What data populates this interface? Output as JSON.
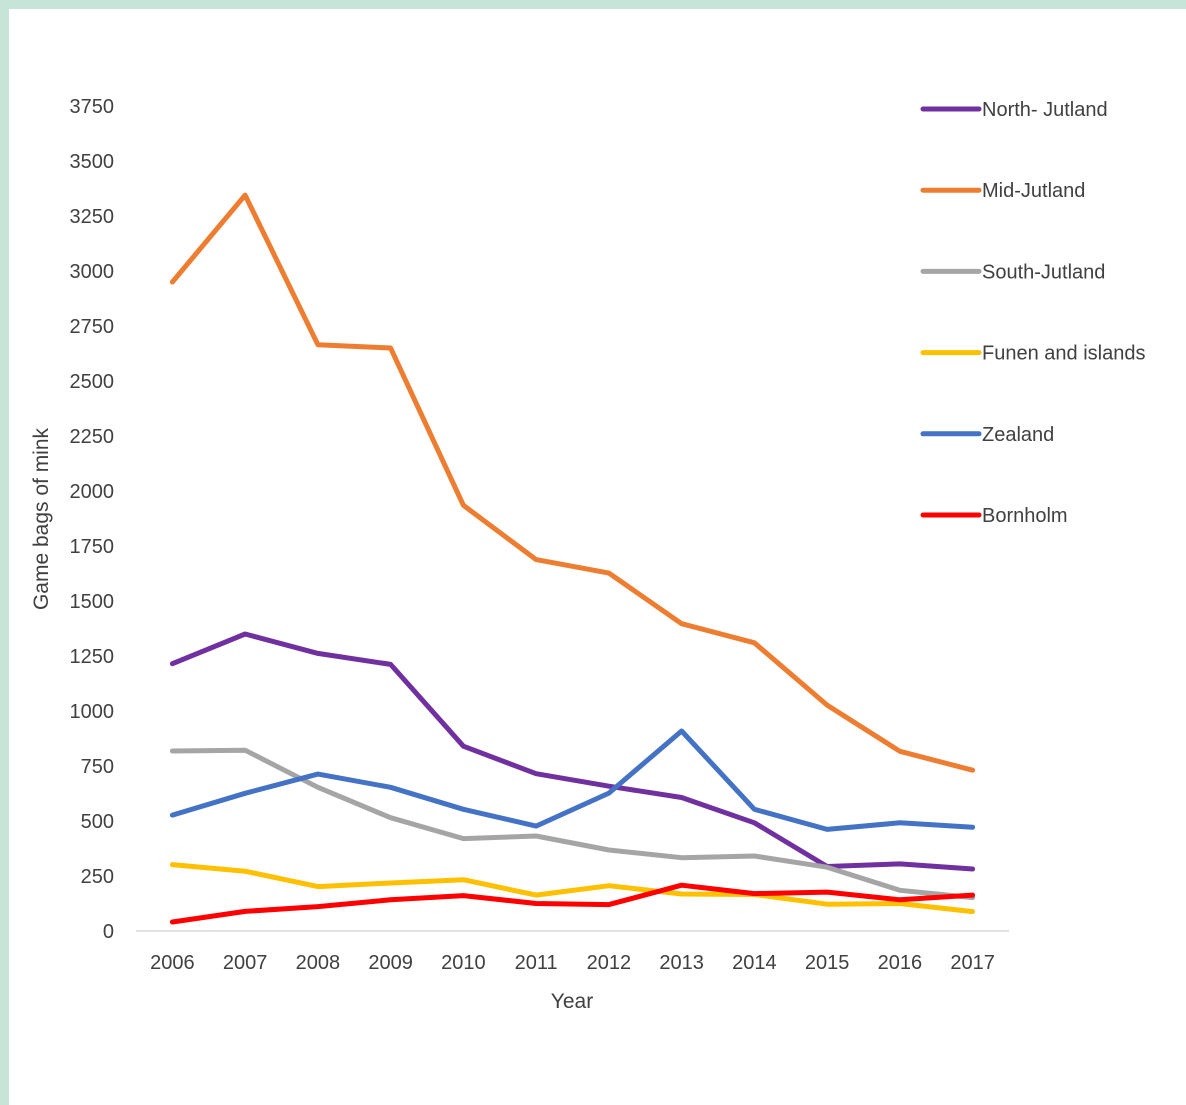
{
  "chart_data": {
    "type": "line",
    "title": "",
    "xlabel": "Year",
    "ylabel": "Game bags of mink",
    "categories": [
      "2006",
      "2007",
      "2008",
      "2009",
      "2010",
      "2011",
      "2012",
      "2013",
      "2014",
      "2015",
      "2016",
      "2017"
    ],
    "ylim": [
      0,
      3750
    ],
    "yticks": [
      0,
      250,
      500,
      750,
      1000,
      1250,
      1500,
      1750,
      2000,
      2250,
      2500,
      2750,
      3000,
      3250,
      3500,
      3750
    ],
    "grid": false,
    "legend_position": "right",
    "series": [
      {
        "name": "North- Jutland",
        "color": "#7030a0",
        "values": [
          1215,
          1350,
          1262,
          1212,
          840,
          715,
          658,
          607,
          492,
          293,
          305,
          282
        ]
      },
      {
        "name": "Mid-Jutland",
        "color": "#ed7d31",
        "values": [
          2950,
          3345,
          2665,
          2650,
          1935,
          1688,
          1627,
          1397,
          1310,
          1027,
          817,
          731
        ]
      },
      {
        "name": "South-Jutland",
        "color": "#a5a5a5",
        "values": [
          818,
          822,
          653,
          515,
          420,
          432,
          368,
          333,
          341,
          290,
          185,
          152
        ]
      },
      {
        "name": "Funen and islands",
        "color": "#ffc000",
        "values": [
          302,
          272,
          202,
          218,
          233,
          163,
          206,
          168,
          166,
          122,
          125,
          88
        ]
      },
      {
        "name": "Zealand",
        "color": "#4472c4",
        "values": [
          527,
          626,
          713,
          653,
          553,
          477,
          627,
          909,
          553,
          462,
          492,
          472
        ]
      },
      {
        "name": "Bornholm",
        "color": "#ff0000",
        "values": [
          41,
          89,
          111,
          142,
          161,
          125,
          120,
          208,
          170,
          177,
          142,
          163
        ]
      }
    ]
  }
}
